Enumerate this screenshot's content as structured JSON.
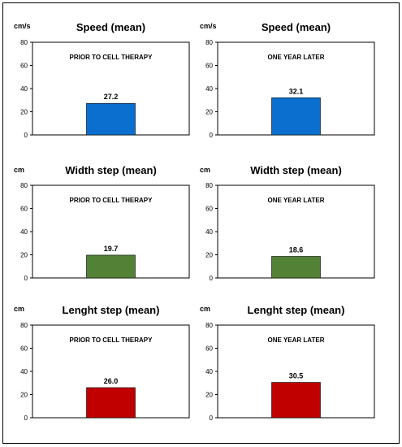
{
  "chart_data": [
    {
      "type": "bar",
      "title": "Speed (mean)",
      "ylabel": "cm/s",
      "ylim": [
        0,
        80
      ],
      "yticks": [
        "0",
        "20",
        "40",
        "60",
        "80"
      ],
      "annotation": "PRIOR TO CELL THERAPY",
      "values": [
        27.2
      ],
      "value_labels": [
        "27.2"
      ],
      "color": "#0a6fcf"
    },
    {
      "type": "bar",
      "title": "Speed (mean)",
      "ylabel": "cm/s",
      "ylim": [
        0,
        80
      ],
      "yticks": [
        "0",
        "20",
        "40",
        "60",
        "80"
      ],
      "annotation": "ONE YEAR LATER",
      "values": [
        32.1
      ],
      "value_labels": [
        "32.1"
      ],
      "color": "#0a6fcf"
    },
    {
      "type": "bar",
      "title": "Width step (mean)",
      "ylabel": "cm",
      "ylim": [
        0,
        80
      ],
      "yticks": [
        "0",
        "20",
        "40",
        "60",
        "80"
      ],
      "annotation": "PRIOR TO CELL THERAPY",
      "values": [
        19.7
      ],
      "value_labels": [
        "19.7"
      ],
      "color": "#538135"
    },
    {
      "type": "bar",
      "title": "Width step (mean)",
      "ylabel": "cm",
      "ylim": [
        0,
        80
      ],
      "yticks": [
        "0",
        "20",
        "40",
        "60",
        "80"
      ],
      "annotation": "ONE YEAR LATER",
      "values": [
        18.6
      ],
      "value_labels": [
        "18.6"
      ],
      "color": "#538135"
    },
    {
      "type": "bar",
      "title": "Lenght step (mean)",
      "ylabel": "cm",
      "ylim": [
        0,
        80
      ],
      "yticks": [
        "0",
        "20",
        "40",
        "60",
        "80"
      ],
      "annotation": "PRIOR TO CELL THERAPY",
      "values": [
        26.0
      ],
      "value_labels": [
        "26.0"
      ],
      "color": "#c00000"
    },
    {
      "type": "bar",
      "title": "Lenght step (mean)",
      "ylabel": "cm",
      "ylim": [
        0,
        80
      ],
      "yticks": [
        "0",
        "20",
        "40",
        "60",
        "80"
      ],
      "annotation": "ONE YEAR LATER",
      "values": [
        30.5
      ],
      "value_labels": [
        "30.5"
      ],
      "color": "#c00000"
    }
  ]
}
